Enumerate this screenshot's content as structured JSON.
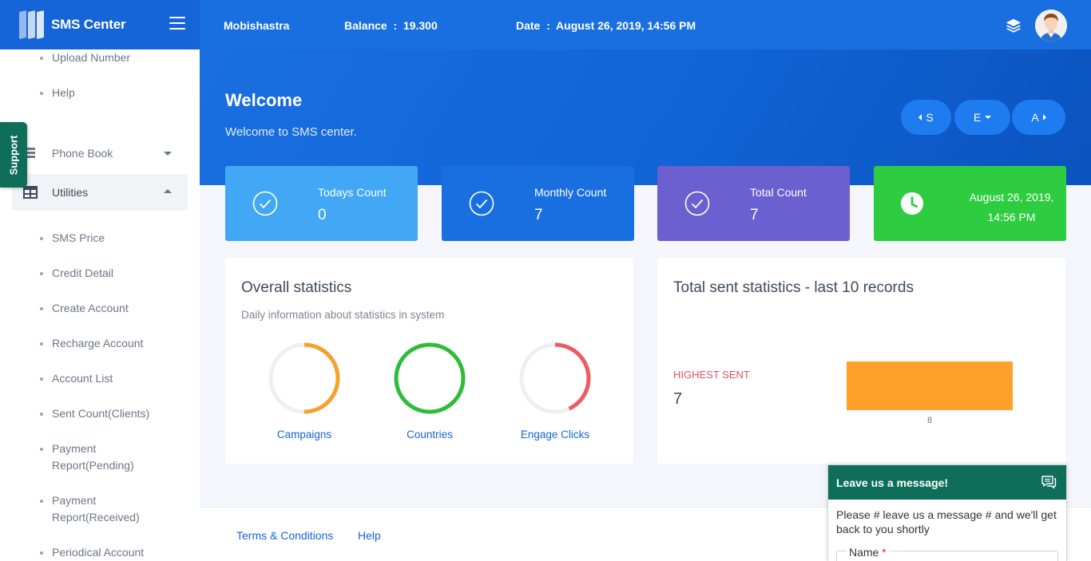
{
  "brand": {
    "name": "SMS Center"
  },
  "header": {
    "company": "Mobishastra",
    "balance_label": "Balance  :  19.300",
    "date_label": "Date  :  August 26, 2019, 14:56 PM"
  },
  "sidebar": {
    "support_tab": "Support",
    "top_sub_items": [
      "Upload Number",
      "Help"
    ],
    "menu": [
      {
        "label": "Phone Book",
        "icon": "phone-book-icon",
        "expanded": false
      },
      {
        "label": "Utilities",
        "icon": "grid-table-icon",
        "expanded": true
      }
    ],
    "utilities_items": [
      "SMS Price",
      "Credit Detail",
      "Create Account",
      "Recharge Account",
      "Account List",
      "Sent Count(Clients)",
      "Payment Report(Pending)",
      "Payment Report(Received)",
      "Periodical Account"
    ]
  },
  "hero": {
    "title": "Welcome",
    "subtitle": "Welcome to SMS center.",
    "pills": [
      "S",
      "E",
      "A"
    ]
  },
  "cards": [
    {
      "label": "Todays Count",
      "value": "0",
      "color": "#42a7f5",
      "icon": "check-circle-icon"
    },
    {
      "label": "Monthly Count",
      "value": "7",
      "color": "#1a6fe0",
      "icon": "check-circle-icon"
    },
    {
      "label": "Total Count",
      "value": "7",
      "color": "#6c5fcf",
      "icon": "check-circle-icon"
    },
    {
      "label": "August 26, 2019, 14:56 PM",
      "color": "#2ecc40",
      "icon": "clock-icon"
    }
  ],
  "overall": {
    "title": "Overall statistics",
    "subtitle": "Daily information about statistics in system",
    "donuts": [
      {
        "label": "Campaigns",
        "color": "#f7a02b",
        "fraction": 0.5
      },
      {
        "label": "Countries",
        "color": "#2ebd3a",
        "fraction": 1.0
      },
      {
        "label": "Engage Clicks",
        "color": "#ef5a5f",
        "fraction": 0.43
      }
    ]
  },
  "sent_stats": {
    "title": "Total sent statistics - last 10 records",
    "highest_label": "HIGHEST SENT",
    "highest_value": "7",
    "chart_data": {
      "type": "bar",
      "categories": [
        "8"
      ],
      "values": [
        7
      ],
      "color": "#ffa12b"
    }
  },
  "footer": {
    "links": [
      "Terms & Conditions",
      "Help"
    ]
  },
  "chat": {
    "header": "Leave us a message!",
    "body": "Please # leave us a message # and we'll get back to you shortly",
    "name_label": "Name",
    "required_mark": "*"
  }
}
